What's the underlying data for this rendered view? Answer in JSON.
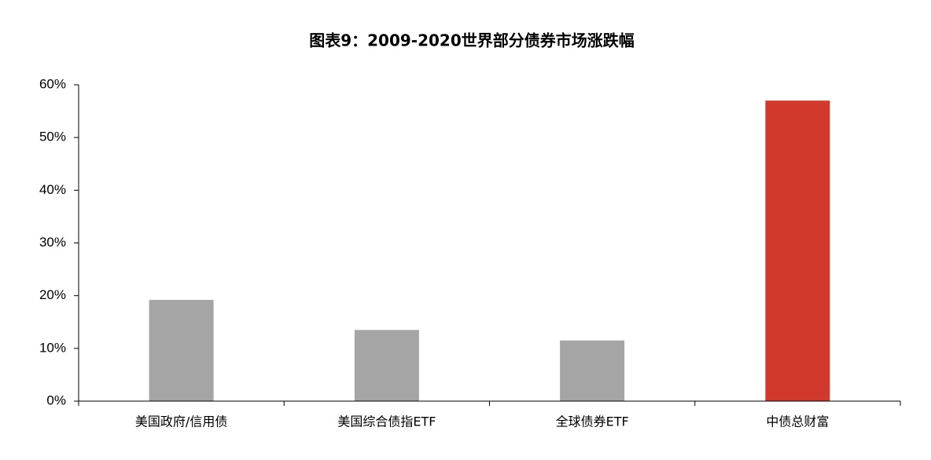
{
  "chart_data": {
    "type": "bar",
    "title": "图表9：2009-2020世界部分债券市场涨跌幅",
    "categories": [
      "美国政府/信用债",
      "美国综合债指ETF",
      "全球债券ETF",
      "中债总财富"
    ],
    "values": [
      19.2,
      13.5,
      11.5,
      57.0
    ],
    "colors": [
      "#a5a5a5",
      "#a5a5a5",
      "#a5a5a5",
      "#d0392b"
    ],
    "ylim": [
      0,
      60
    ],
    "yticks": [
      {
        "value": 0,
        "label": "0%"
      },
      {
        "value": 10,
        "label": "10%"
      },
      {
        "value": 20,
        "label": "20%"
      },
      {
        "value": 30,
        "label": "30%"
      },
      {
        "value": 40,
        "label": "40%"
      },
      {
        "value": 50,
        "label": "50%"
      },
      {
        "value": 60,
        "label": "60%"
      }
    ],
    "grid": false
  }
}
